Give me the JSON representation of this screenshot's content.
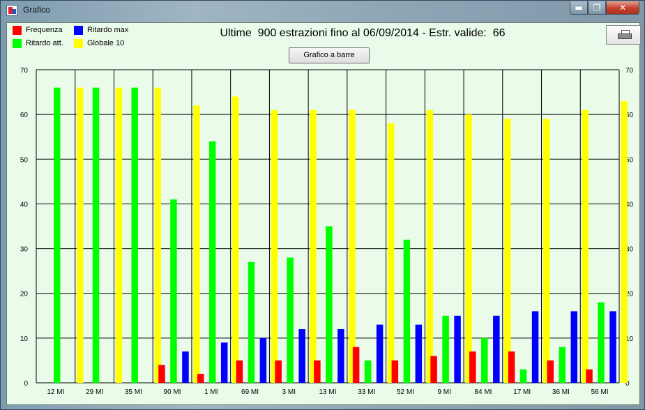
{
  "window": {
    "title": "Grafico"
  },
  "controls": {
    "minimize": "▬",
    "maximize": "❐",
    "close": "✕"
  },
  "legend": [
    {
      "label": "Frequenza",
      "color": "#ff0000"
    },
    {
      "label": "Ritardo max",
      "color": "#0000ff"
    },
    {
      "label": "Ritardo att.",
      "color": "#00ff00"
    },
    {
      "label": "Globale  10",
      "color": "#ffff00"
    }
  ],
  "header": {
    "title": "Ultime  900 estrazioni fino al 06/09/2014 - Estr. valide:  66",
    "bar_button": "Grafico a barre",
    "print_icon": "printer-icon"
  },
  "chart_data": {
    "type": "bar",
    "categories": [
      "12 MI",
      "29 MI",
      "35 MI",
      "90 MI",
      "1 MI",
      "69 MI",
      "3 MI",
      "13 MI",
      "33 MI",
      "52 MI",
      "9 MI",
      "84 MI",
      "17 MI",
      "36 MI",
      "56 MI"
    ],
    "series": [
      {
        "name": "Frequenza",
        "color": "#ff0000",
        "values": [
          0,
          0,
          0,
          4,
          2,
          5,
          5,
          5,
          8,
          5,
          6,
          7,
          7,
          5,
          3
        ]
      },
      {
        "name": "Ritardo att.",
        "color": "#00ff00",
        "values": [
          66,
          66,
          66,
          41,
          54,
          27,
          28,
          35,
          5,
          32,
          15,
          10,
          3,
          8,
          18
        ]
      },
      {
        "name": "Ritardo max",
        "color": "#0000ff",
        "values": [
          0,
          0,
          0,
          7,
          9,
          10,
          12,
          12,
          13,
          13,
          15,
          15,
          16,
          16,
          16
        ]
      },
      {
        "name": "Globale  10",
        "color": "#ffff00",
        "values": [
          66,
          66,
          66,
          62,
          64,
          61,
          61,
          61,
          58,
          61,
          60,
          59,
          59,
          61,
          63
        ]
      }
    ],
    "ylim": [
      0,
      70
    ],
    "yticks": [
      0,
      10,
      20,
      30,
      40,
      50,
      60,
      70
    ],
    "grid": true
  }
}
